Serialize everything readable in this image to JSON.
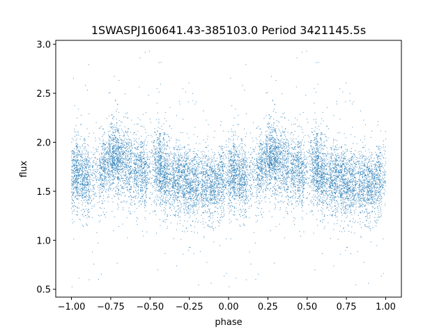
{
  "chart_data": {
    "type": "scatter",
    "title": "1SWASPJ160641.43-385103.0 Period 3421145.5s",
    "xlabel": "phase",
    "ylabel": "flux",
    "xlim": [
      -1.1,
      1.1
    ],
    "ylim": [
      0.42,
      3.04
    ],
    "xticks": [
      -1.0,
      -0.75,
      -0.5,
      -0.25,
      0.0,
      0.25,
      0.5,
      0.75,
      1.0
    ],
    "xtick_labels": [
      "−1.00",
      "−0.75",
      "−0.50",
      "−0.25",
      "0.00",
      "0.25",
      "0.50",
      "0.75",
      "1.00"
    ],
    "yticks": [
      0.5,
      1.0,
      1.5,
      2.0,
      2.5,
      3.0
    ],
    "ytick_labels": [
      "0.5",
      "1.0",
      "1.5",
      "2.0",
      "2.5",
      "3.0"
    ],
    "grid": false,
    "legend": "none",
    "point_color": "#1f77b4",
    "phase_range": [
      -1.0,
      1.0
    ],
    "series": [
      {
        "profile_phase": [
          0.0,
          0.05,
          0.1,
          0.15,
          0.2,
          0.25,
          0.3,
          0.35,
          0.4,
          0.45,
          0.5,
          0.55,
          0.6,
          0.65,
          0.7,
          0.75,
          0.8,
          0.85,
          0.9,
          0.95,
          1.0
        ],
        "median_flux": [
          1.65,
          1.7,
          1.62,
          1.66,
          1.72,
          1.85,
          1.83,
          1.78,
          1.74,
          1.72,
          1.7,
          1.78,
          1.68,
          1.63,
          1.6,
          1.58,
          1.55,
          1.6,
          1.56,
          1.6,
          1.65
        ],
        "scatter_sd": 0.18,
        "observation_clusters": [
          0.02,
          0.05,
          0.09,
          0.2,
          0.25,
          0.28,
          0.31,
          0.36,
          0.42,
          0.46,
          0.55,
          0.58,
          0.61,
          0.66,
          0.7,
          0.74,
          0.79,
          0.85,
          0.9,
          0.95
        ]
      }
    ]
  }
}
